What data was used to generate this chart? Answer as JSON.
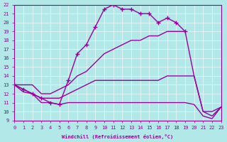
{
  "xlabel": "Windchill (Refroidissement éolien,°C)",
  "background_color": "#b2e8e8",
  "line_color": "#990099",
  "xlim": [
    0,
    23
  ],
  "ylim": [
    9,
    22
  ],
  "xticks": [
    0,
    1,
    2,
    3,
    4,
    5,
    6,
    7,
    8,
    9,
    10,
    11,
    12,
    13,
    14,
    15,
    16,
    17,
    18,
    19,
    20,
    21,
    22,
    23
  ],
  "yticks": [
    9,
    10,
    11,
    12,
    13,
    14,
    15,
    16,
    17,
    18,
    19,
    20,
    21,
    22
  ],
  "series": [
    {
      "x": [
        0,
        1,
        2,
        3,
        4,
        5,
        6,
        7,
        8,
        9,
        10,
        11,
        12,
        13,
        14,
        15,
        16,
        17,
        18,
        19
      ],
      "y": [
        13,
        12.5,
        12,
        11.5,
        11,
        10.8,
        13.5,
        16.5,
        17.5,
        19.5,
        21.5,
        22,
        21.5,
        21.5,
        21,
        21,
        20,
        20.5,
        20,
        19
      ],
      "marker": "+",
      "markersize": 4,
      "linewidth": 1.0
    },
    {
      "x": [
        0,
        1,
        2,
        3,
        4,
        5,
        6,
        7,
        8,
        9,
        10,
        11,
        12,
        13,
        14,
        15,
        16,
        17,
        18,
        19,
        20,
        21,
        22,
        23
      ],
      "y": [
        13,
        13,
        13,
        12,
        12,
        12.5,
        13,
        14,
        14.5,
        15.5,
        16.5,
        17,
        17.5,
        18,
        18,
        18.5,
        18.5,
        19,
        19,
        19,
        14,
        10,
        10,
        10.5
      ],
      "marker": null,
      "linewidth": 1.0
    },
    {
      "x": [
        0,
        1,
        2,
        3,
        4,
        5,
        6,
        7,
        8,
        9,
        10,
        11,
        12,
        13,
        14,
        15,
        16,
        17,
        18,
        19,
        20,
        21,
        22,
        23
      ],
      "y": [
        13,
        12.5,
        12,
        11.5,
        11.5,
        11.5,
        12,
        12.5,
        13,
        13.5,
        13.5,
        13.5,
        13.5,
        13.5,
        13.5,
        13.5,
        13.5,
        14,
        14,
        14,
        14,
        10,
        9.5,
        10.5
      ],
      "marker": null,
      "linewidth": 1.0
    },
    {
      "x": [
        0,
        1,
        2,
        3,
        4,
        5,
        6,
        7,
        8,
        9,
        10,
        11,
        12,
        13,
        14,
        15,
        16,
        17,
        18,
        19,
        20,
        21,
        22,
        23
      ],
      "y": [
        13,
        12.2,
        12,
        11,
        11,
        10.8,
        11,
        11,
        11,
        11,
        11,
        11,
        11,
        11,
        11,
        11,
        11,
        11,
        11,
        11,
        10.8,
        9.5,
        9.2,
        10.5
      ],
      "marker": null,
      "linewidth": 1.0
    }
  ]
}
